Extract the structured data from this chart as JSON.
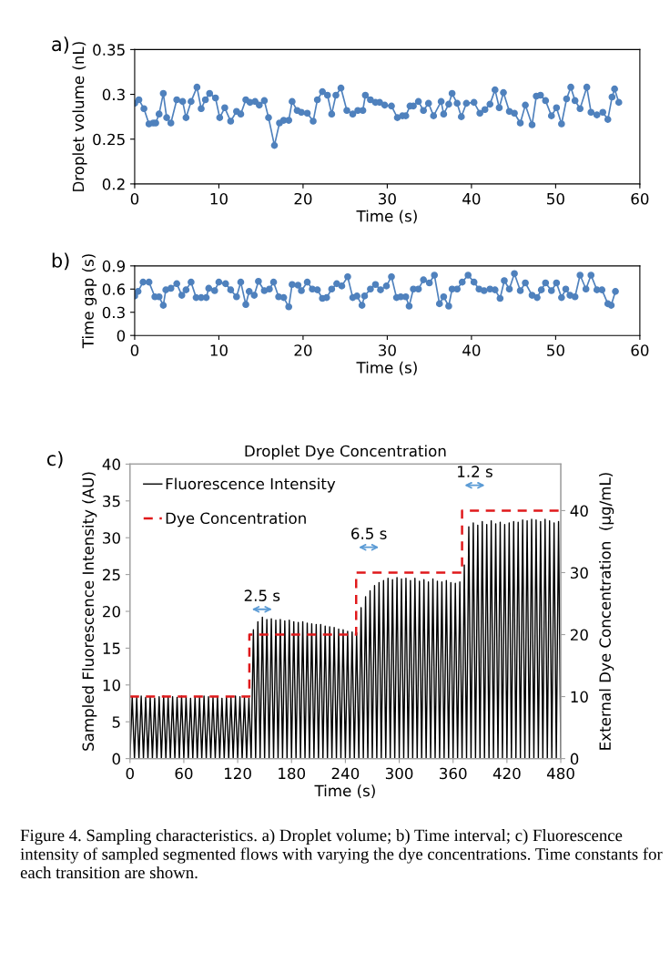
{
  "chart_data": [
    {
      "type": "line",
      "xlabel": "Time (s)",
      "ylabel": "Droplet volume (nL)",
      "xlim": [
        0,
        60
      ],
      "xticks": [
        0,
        10,
        20,
        30,
        40,
        50,
        60
      ],
      "ylim": [
        0.2,
        0.35
      ],
      "yticks": [
        0.2,
        0.25,
        0.3,
        0.35
      ],
      "marker": "circle",
      "annotations": [
        "a)"
      ],
      "x": [
        0,
        0.5,
        1.1,
        1.7,
        2.2,
        2.5,
        2.9,
        3.4,
        3.8,
        4.3,
        5.0,
        5.7,
        6.1,
        6.7,
        7.4,
        7.9,
        8.4,
        8.9,
        9.6,
        10.1,
        10.7,
        11.4,
        12.1,
        12.6,
        13.2,
        13.7,
        14.3,
        14.8,
        15.4,
        15.9,
        16.6,
        17.2,
        17.7,
        18.3,
        18.7,
        19.3,
        19.8,
        20.5,
        21.2,
        21.7,
        22.3,
        22.9,
        23.4,
        23.9,
        24.5,
        25.2,
        25.9,
        26.5,
        27.1,
        27.4,
        28.0,
        28.6,
        29.1,
        29.7,
        30.5,
        31.2,
        31.8,
        32.2,
        32.7,
        33.1,
        33.7,
        34.3,
        34.9,
        35.5,
        36.4,
        36.7,
        37.3,
        37.7,
        38.3,
        38.8,
        39.4,
        40.3,
        41.0,
        41.6,
        42.2,
        42.8,
        43.3,
        43.8,
        44.5,
        45.1,
        45.8,
        46.4,
        47.2,
        47.7,
        48.2,
        48.8,
        49.5,
        50.1,
        50.7,
        51.3,
        51.8,
        52.3,
        52.9,
        53.7,
        54.2,
        54.9,
        55.6,
        56.2,
        56.7,
        57.0,
        57.5
      ],
      "series": [
        {
          "color": "#4f81bd",
          "values": [
            0.29,
            0.294,
            0.284,
            0.267,
            0.268,
            0.268,
            0.278,
            0.301,
            0.274,
            0.268,
            0.294,
            0.292,
            0.274,
            0.292,
            0.308,
            0.284,
            0.294,
            0.301,
            0.296,
            0.274,
            0.285,
            0.27,
            0.281,
            0.278,
            0.294,
            0.291,
            0.292,
            0.288,
            0.293,
            0.274,
            0.243,
            0.268,
            0.271,
            0.271,
            0.292,
            0.282,
            0.28,
            0.279,
            0.27,
            0.294,
            0.303,
            0.299,
            0.278,
            0.299,
            0.307,
            0.282,
            0.278,
            0.282,
            0.282,
            0.299,
            0.294,
            0.291,
            0.291,
            0.288,
            0.287,
            0.274,
            0.276,
            0.276,
            0.287,
            0.287,
            0.292,
            0.282,
            0.29,
            0.276,
            0.292,
            0.278,
            0.289,
            0.301,
            0.29,
            0.275,
            0.29,
            0.291,
            0.279,
            0.283,
            0.289,
            0.305,
            0.285,
            0.302,
            0.281,
            0.279,
            0.268,
            0.288,
            0.266,
            0.298,
            0.299,
            0.293,
            0.276,
            0.285,
            0.267,
            0.295,
            0.308,
            0.293,
            0.284,
            0.308,
            0.28,
            0.277,
            0.28,
            0.272,
            0.297,
            0.306,
            0.291
          ]
        }
      ]
    },
    {
      "type": "line",
      "xlabel": "Time (s)",
      "ylabel": "Time gap (s)",
      "xlim": [
        0,
        60
      ],
      "xticks": [
        0,
        10,
        20,
        30,
        40,
        50,
        60
      ],
      "ylim": [
        0,
        0.9
      ],
      "yticks": [
        0,
        0.3,
        0.6,
        0.9
      ],
      "marker": "circle",
      "annotations": [
        "b)"
      ],
      "x": [
        0,
        0.4,
        1.0,
        1.7,
        2.4,
        2.9,
        3.4,
        3.7,
        4.3,
        5.0,
        5.6,
        6.1,
        6.7,
        7.3,
        7.9,
        8.5,
        8.8,
        9.5,
        10.0,
        10.8,
        11.4,
        12.1,
        12.6,
        13.2,
        13.6,
        14.2,
        14.7,
        15.4,
        16.0,
        16.5,
        17.1,
        17.7,
        18.3,
        18.7,
        19.4,
        19.8,
        20.5,
        21.1,
        21.7,
        22.3,
        22.8,
        23.4,
        24.0,
        24.6,
        25.3,
        25.9,
        26.4,
        27.0,
        27.3,
        28.0,
        28.6,
        29.2,
        29.9,
        30.5,
        31.1,
        31.6,
        32.2,
        32.6,
        33.1,
        33.7,
        34.3,
        35.0,
        35.6,
        36.2,
        36.7,
        37.3,
        37.7,
        38.3,
        38.9,
        39.6,
        40.3,
        40.9,
        41.5,
        42.2,
        42.8,
        43.4,
        43.9,
        44.5,
        45.1,
        45.8,
        46.4,
        47.2,
        47.8,
        48.3,
        48.8,
        49.5,
        50.1,
        50.7,
        51.2,
        51.7,
        52.3,
        52.9,
        53.6,
        54.2,
        54.9,
        55.5,
        56.2,
        56.6,
        57.1
      ],
      "series": [
        {
          "color": "#4f81bd",
          "values": [
            0.51,
            0.57,
            0.69,
            0.69,
            0.5,
            0.5,
            0.39,
            0.59,
            0.61,
            0.67,
            0.52,
            0.59,
            0.69,
            0.49,
            0.49,
            0.49,
            0.61,
            0.58,
            0.69,
            0.67,
            0.59,
            0.5,
            0.69,
            0.4,
            0.57,
            0.52,
            0.7,
            0.58,
            0.6,
            0.69,
            0.5,
            0.49,
            0.37,
            0.66,
            0.65,
            0.58,
            0.69,
            0.6,
            0.59,
            0.48,
            0.49,
            0.6,
            0.67,
            0.64,
            0.76,
            0.49,
            0.51,
            0.39,
            0.51,
            0.6,
            0.66,
            0.59,
            0.64,
            0.76,
            0.49,
            0.5,
            0.5,
            0.38,
            0.6,
            0.6,
            0.72,
            0.68,
            0.78,
            0.41,
            0.5,
            0.38,
            0.6,
            0.6,
            0.69,
            0.78,
            0.69,
            0.6,
            0.58,
            0.6,
            0.59,
            0.48,
            0.71,
            0.6,
            0.8,
            0.58,
            0.68,
            0.52,
            0.49,
            0.59,
            0.68,
            0.58,
            0.68,
            0.49,
            0.6,
            0.52,
            0.5,
            0.78,
            0.6,
            0.78,
            0.59,
            0.59,
            0.41,
            0.39,
            0.57
          ]
        }
      ]
    },
    {
      "type": "line",
      "title": "Droplet Dye Concentration",
      "xlabel": "Time (s)",
      "ylabel": "Sampled Fluorescence Intensity (AU)",
      "y2label": "External Dye Concentration  (µg/mL)",
      "xlim": [
        0,
        480
      ],
      "xticks": [
        0,
        60,
        120,
        180,
        240,
        300,
        360,
        420,
        480
      ],
      "ylim": [
        0,
        40
      ],
      "yticks": [
        0,
        5,
        10,
        15,
        20,
        25,
        30,
        35,
        40
      ],
      "y2lim": [
        0,
        47.5
      ],
      "y2ticks": [
        0,
        10,
        20,
        30,
        40
      ],
      "legend": "top left",
      "annotations": [
        "c)",
        "2.5 s",
        "6.5 s",
        "1.2 s",
        "Figure 4. Sampling characteristics. a) Droplet volume; b) Time interval; c) Fluorescence intensity of sampled segmented flows with varying the dye concentrations. Time constants for each transition are shown."
      ],
      "series": [
        {
          "name": "Fluorescence Intensity",
          "type": "line",
          "color": "#000000",
          "x": [
            0,
            2.5,
            5,
            7.5,
            10,
            12.5,
            15,
            17.5,
            20,
            22.5,
            25,
            27.5,
            30,
            32.5,
            35,
            37.5,
            40,
            42.5,
            45,
            47.5,
            50,
            52.5,
            55,
            57.5,
            60,
            62.5,
            65,
            67.5,
            70,
            72.5,
            75,
            77.5,
            80,
            82.5,
            85,
            87.5,
            90,
            92.5,
            95,
            97.5,
            100,
            102.5,
            105,
            107.5,
            110,
            112.5,
            115,
            117.5,
            120,
            122.5,
            125,
            127.5,
            130,
            132.5,
            135,
            137.5,
            140,
            142.5,
            145,
            147.5,
            150,
            152.5,
            155,
            157.5,
            160,
            162.5,
            165,
            167.5,
            170,
            172.5,
            175,
            177.5,
            180,
            182.5,
            185,
            187.5,
            190,
            192.5,
            195,
            197.5,
            200,
            202.5,
            205,
            207.5,
            210,
            212.5,
            215,
            217.5,
            220,
            222.5,
            225,
            227.5,
            230,
            232.5,
            235,
            237.5,
            240,
            242.5,
            245,
            247.5,
            250,
            252.5,
            255,
            257.5,
            260,
            262.5,
            265,
            267.5,
            270,
            272.5,
            275,
            277.5,
            280,
            282.5,
            285,
            287.5,
            290,
            292.5,
            295,
            297.5,
            300,
            302.5,
            305,
            307.5,
            310,
            312.5,
            315,
            317.5,
            320,
            322.5,
            325,
            327.5,
            330,
            332.5,
            335,
            337.5,
            340,
            342.5,
            345,
            347.5,
            350,
            352.5,
            355,
            357.5,
            360,
            362.5,
            365,
            367.5,
            370,
            372.5,
            375,
            377.5,
            380,
            382.5,
            385,
            387.5,
            390,
            392.5,
            395,
            397.5,
            400,
            402.5,
            405,
            407.5,
            410,
            412.5,
            415,
            417.5,
            420,
            422.5,
            425,
            427.5,
            430,
            432.5,
            435,
            437.5,
            440,
            442.5,
            445,
            447.5,
            450,
            452.5,
            455,
            457.5,
            460,
            462.5,
            465,
            467.5,
            470,
            472.5,
            475,
            477.5,
            480
          ],
          "values": [
            0,
            8.4,
            0,
            8.3,
            0,
            8.5,
            0,
            8.3,
            0,
            8.4,
            0,
            8.2,
            0,
            8.4,
            0,
            8.5,
            0,
            8.3,
            0,
            8.4,
            0,
            8.3,
            0,
            8.5,
            0,
            8.4,
            0,
            8.2,
            0,
            8.4,
            0,
            8.3,
            0,
            8.5,
            0,
            8.4,
            0,
            8.3,
            0,
            8.4,
            0,
            8.2,
            0,
            8.4,
            0,
            8.3,
            0,
            8.5,
            0,
            8.4,
            0,
            8.3,
            0,
            8.2,
            0,
            17.5,
            0,
            18.6,
            0,
            19.2,
            0,
            18.9,
            0,
            19.0,
            0,
            18.8,
            0,
            18.9,
            0,
            18.7,
            0,
            18.8,
            0,
            18.6,
            0,
            18.5,
            0,
            18.6,
            0,
            18.4,
            0,
            18.3,
            0,
            18.2,
            0,
            18.2,
            0,
            18.0,
            0,
            17.9,
            0,
            17.8,
            0,
            17.6,
            0,
            17.5,
            0,
            17.3,
            0,
            17.2,
            0,
            17.1,
            0,
            20.5,
            0,
            22.0,
            0,
            22.8,
            0,
            23.5,
            0,
            23.9,
            0,
            24.2,
            0,
            24.5,
            0,
            24.3,
            0,
            24.6,
            0,
            24.4,
            0,
            24.5,
            0,
            24.2,
            0,
            24.5,
            0,
            24.1,
            0,
            24.3,
            0,
            24.0,
            0,
            24.4,
            0,
            24.1,
            0,
            24.0,
            0,
            24.2,
            0,
            23.9,
            0,
            23.8,
            0,
            24.0,
            0,
            26.3,
            0,
            31.5,
            0,
            32.0,
            0,
            31.7,
            0,
            32.2,
            0,
            31.8,
            0,
            32.3,
            0,
            31.9,
            0,
            32.1,
            0,
            31.8,
            0,
            32.0,
            0,
            32.2,
            0,
            32.1,
            0,
            32.4,
            0,
            32.3,
            0,
            32.5,
            0,
            32.4,
            0,
            32.2,
            0,
            32.5,
            0,
            32.3,
            0,
            32.0,
            0,
            32.2,
            0
          ]
        },
        {
          "name": "Dye Concentration",
          "type": "step",
          "axis": "y2",
          "color": "#e0191b",
          "line_style": "dashed",
          "x": [
            0,
            133,
            252,
            370,
            480
          ],
          "values": [
            10,
            20,
            30,
            40,
            40
          ]
        }
      ]
    }
  ]
}
